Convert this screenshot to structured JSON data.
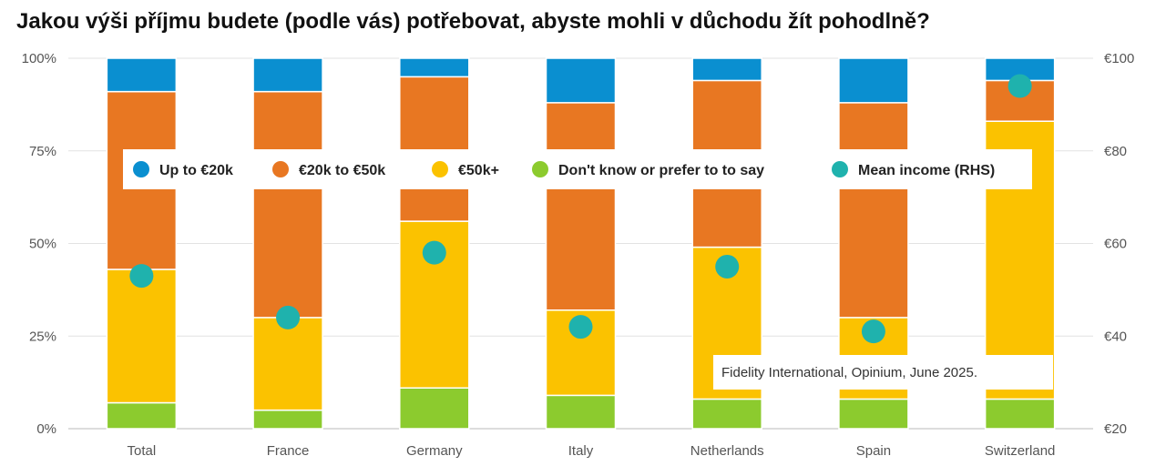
{
  "chart_data": {
    "type": "bar",
    "stacked": true,
    "title": "Jakou výši příjmu budete (podle vás) potřebovat, abyste mohli v důchodu žít pohodlně?",
    "categories": [
      "Total",
      "France",
      "Germany",
      "Italy",
      "Netherlands",
      "Spain",
      "Switzerland"
    ],
    "series": [
      {
        "name": "Don't know or prefer to to say",
        "color": "#8ccb2e",
        "values": [
          7,
          5,
          11,
          9,
          8,
          8,
          8
        ]
      },
      {
        "name": "€50k+",
        "color": "#fbc200",
        "values": [
          36,
          25,
          45,
          23,
          41,
          22,
          75
        ]
      },
      {
        "name": "€20k to €50k",
        "color": "#e87722",
        "values": [
          48,
          61,
          39,
          56,
          45,
          58,
          11
        ]
      },
      {
        "name": "Up to €20k",
        "color": "#0a8fd0",
        "values": [
          9,
          9,
          5,
          12,
          6,
          12,
          6
        ]
      }
    ],
    "mean_income": {
      "name": "Mean income (RHS)",
      "color": "#1fb2ad",
      "values": [
        53,
        44,
        58,
        42,
        55,
        41,
        94
      ]
    },
    "legend_order": [
      "Up to €20k",
      "€20k to €50k",
      "€50k+",
      "Don't know or prefer to to say",
      "Mean income (RHS)"
    ],
    "legend_colors": [
      "#0a8fd0",
      "#e87722",
      "#fbc200",
      "#8ccb2e",
      "#1fb2ad"
    ],
    "yleft_ticks": [
      "0%",
      "25%",
      "50%",
      "75%",
      "100%"
    ],
    "ylim_left": [
      0,
      100
    ],
    "yright_ticks": [
      "€20",
      "€40",
      "€60",
      "€80",
      "€100"
    ],
    "ylim_right": [
      20,
      100
    ],
    "source": "Fidelity International, Opinium, June 2025.",
    "grid": true,
    "legend_position": "top-center, overlaid on plot"
  }
}
